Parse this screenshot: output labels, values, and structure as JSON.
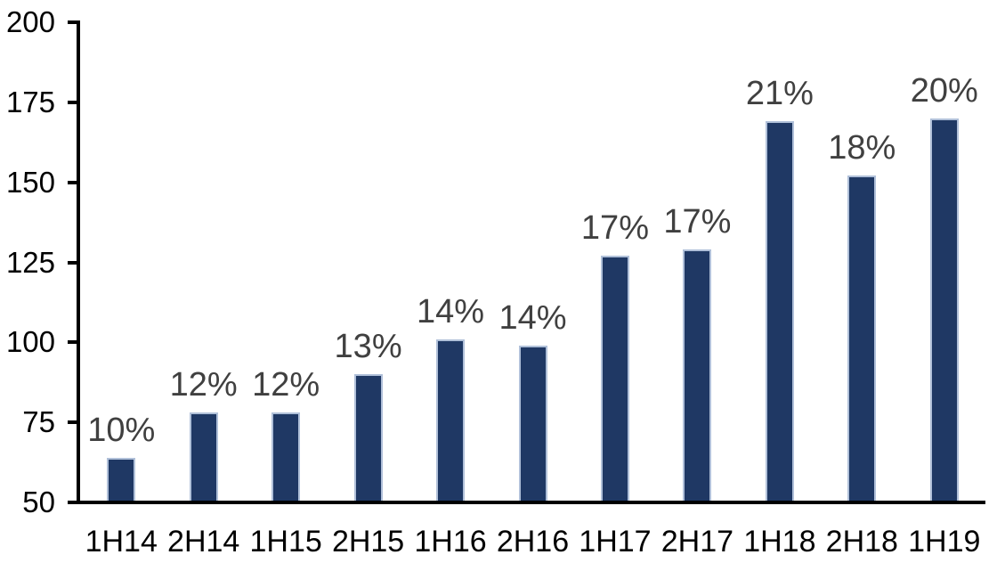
{
  "chart_data": {
    "type": "bar",
    "title": "",
    "categories": [
      "1H14",
      "2H14",
      "1H15",
      "2H15",
      "1H16",
      "2H16",
      "1H17",
      "2H17",
      "1H18",
      "2H18",
      "1H19"
    ],
    "values": [
      64,
      78,
      78,
      90,
      101,
      99,
      127,
      129,
      169,
      152,
      170
    ],
    "data_labels": [
      "10%",
      "12%",
      "12%",
      "13%",
      "14%",
      "14%",
      "17%",
      "17%",
      "21%",
      "18%",
      "20%"
    ],
    "xlabel": "",
    "ylabel": "",
    "ylim": [
      50,
      200
    ],
    "yticks": [
      50,
      75,
      100,
      125,
      150,
      175,
      200
    ],
    "ytick_labels": [
      "50",
      "75",
      "100",
      "125",
      "150",
      "175",
      "200"
    ],
    "grid": false,
    "legend_position": "none",
    "colors": {
      "bar_fill": "#1f3864",
      "bar_border": "#b0c0d9",
      "data_label": "#404040",
      "axis_line": "#000000",
      "axis_text": "#000000",
      "background": "#ffffff"
    }
  }
}
